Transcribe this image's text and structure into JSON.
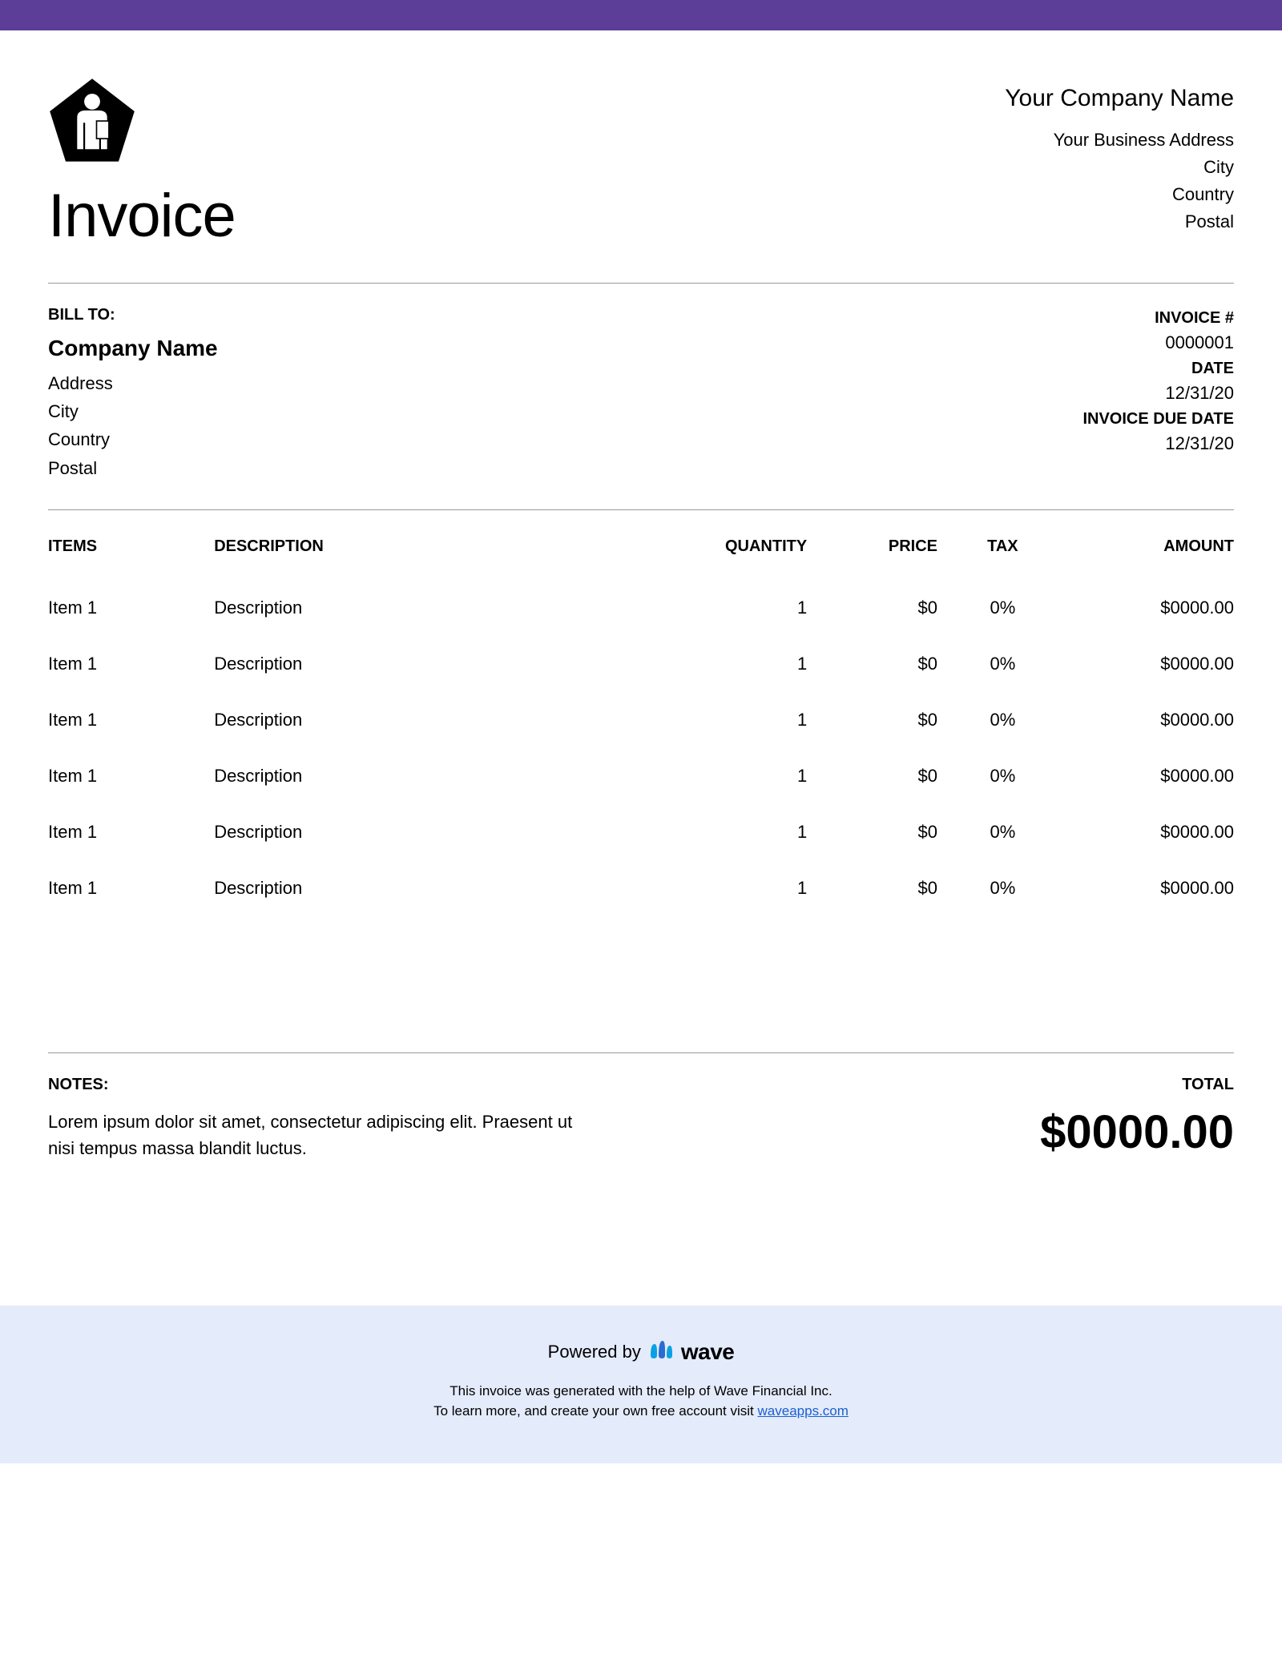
{
  "colors": {
    "top_bar": "#5c3e99",
    "footer_bg": "#e4ebfb",
    "divider": "#999999",
    "text": "#000000",
    "link": "#1a5fd0",
    "wave_logo_fill": "#0aa1e2",
    "wave_logo_fill2": "#2a6bd4"
  },
  "header": {
    "title": "Invoice",
    "company_name": "Your Company Name",
    "address_lines": [
      "Your Business Address",
      "City",
      "Country",
      "Postal"
    ]
  },
  "bill_to": {
    "label": "BILL TO:",
    "company": "Company Name",
    "lines": [
      "Address",
      "City",
      "Country",
      "Postal"
    ]
  },
  "invoice_meta": {
    "number_label": "INVOICE #",
    "number": "0000001",
    "date_label": "DATE",
    "date": "12/31/20",
    "due_label": "INVOICE DUE DATE",
    "due": "12/31/20"
  },
  "table": {
    "headers": {
      "items": "ITEMS",
      "description": "DESCRIPTION",
      "quantity": "QUANTITY",
      "price": "PRICE",
      "tax": "TAX",
      "amount": "AMOUNT"
    },
    "rows": [
      {
        "item": "Item 1",
        "description": "Description",
        "quantity": "1",
        "price": "$0",
        "tax": "0%",
        "amount": "$0000.00"
      },
      {
        "item": "Item 1",
        "description": "Description",
        "quantity": "1",
        "price": "$0",
        "tax": "0%",
        "amount": "$0000.00"
      },
      {
        "item": "Item 1",
        "description": "Description",
        "quantity": "1",
        "price": "$0",
        "tax": "0%",
        "amount": "$0000.00"
      },
      {
        "item": "Item 1",
        "description": "Description",
        "quantity": "1",
        "price": "$0",
        "tax": "0%",
        "amount": "$0000.00"
      },
      {
        "item": "Item 1",
        "description": "Description",
        "quantity": "1",
        "price": "$0",
        "tax": "0%",
        "amount": "$0000.00"
      },
      {
        "item": "Item 1",
        "description": "Description",
        "quantity": "1",
        "price": "$0",
        "tax": "0%",
        "amount": "$0000.00"
      }
    ]
  },
  "notes": {
    "label": "NOTES:",
    "text": "Lorem ipsum dolor sit amet, consectetur adipiscing elit. Praesent ut nisi tempus massa blandit luctus."
  },
  "total": {
    "label": "TOTAL",
    "amount": "$0000.00"
  },
  "footer": {
    "powered_by": "Powered by",
    "brand": "wave",
    "line1": "This invoice was generated with the help of Wave Financial Inc.",
    "line2_prefix": "To learn more, and create your own free account visit ",
    "link_text": "waveapps.com"
  }
}
